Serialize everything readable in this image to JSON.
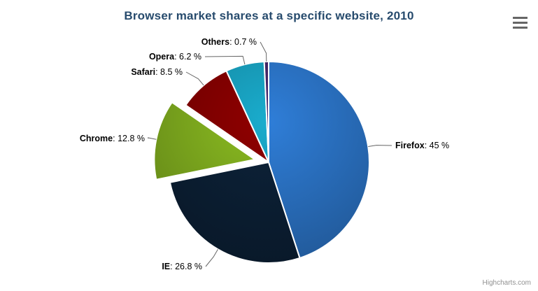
{
  "header": {
    "title": "Browser market shares at a specific website, 2010",
    "menu_icon": "hamburger-icon"
  },
  "credits": {
    "label": "Highcharts.com"
  },
  "chart_data": {
    "type": "pie",
    "title": "Browser market shares at a specific website, 2010",
    "legend": false,
    "label_format": "{name}: {value} %",
    "total": 100,
    "slices": [
      {
        "name": "Firefox",
        "value": 45,
        "label": "Firefox: 45 %",
        "color": "#2f7ed8",
        "sliced": false
      },
      {
        "name": "IE",
        "value": 26.8,
        "label": "IE: 26.8 %",
        "color": "#0d233a",
        "sliced": false
      },
      {
        "name": "Chrome",
        "value": 12.8,
        "label": "Chrome: 12.8 %",
        "color": "#8bbc21",
        "sliced": true
      },
      {
        "name": "Safari",
        "value": 8.5,
        "label": "Safari: 8.5 %",
        "color": "#910000",
        "sliced": false
      },
      {
        "name": "Opera",
        "value": 6.2,
        "label": "Opera: 6.2 %",
        "color": "#1aadce",
        "sliced": false
      },
      {
        "name": "Others",
        "value": 0.7,
        "label": "Others: 0.7 %",
        "color": "#492970",
        "sliced": false
      }
    ],
    "label_colors": {
      "text": "#000000",
      "connector": "#666666"
    },
    "background": "#ffffff"
  }
}
